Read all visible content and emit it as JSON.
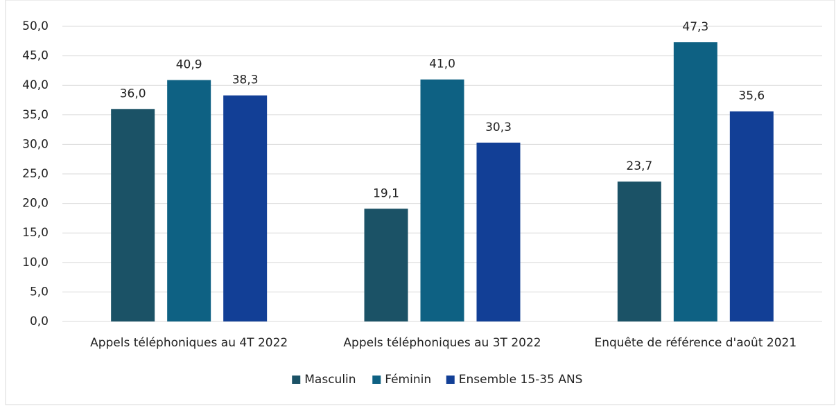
{
  "chart_data": {
    "type": "bar",
    "categories": [
      "Appels téléphoniques au 4T 2022",
      "Appels téléphoniques au 3T 2022",
      "Enquête de référence d'août 2021"
    ],
    "series": [
      {
        "name": "Masculin",
        "color": "#1b5266",
        "values": [
          36.0,
          19.1,
          23.7
        ],
        "value_labels": [
          "36,0",
          "19,1",
          "23,7"
        ]
      },
      {
        "name": "Féminin",
        "color": "#0e6183",
        "values": [
          40.9,
          41.0,
          47.3
        ],
        "value_labels": [
          "40,9",
          "41,0",
          "47,3"
        ]
      },
      {
        "name": "Ensemble 15-35 ANS",
        "color": "#123f96",
        "values": [
          38.3,
          30.3,
          35.6
        ],
        "value_labels": [
          "38,3",
          "30,3",
          "35,6"
        ]
      }
    ],
    "ylim": [
      0,
      50
    ],
    "yticks": [
      {
        "value": 0,
        "label": "0,0"
      },
      {
        "value": 5,
        "label": "5,0"
      },
      {
        "value": 10,
        "label": "10,0"
      },
      {
        "value": 15,
        "label": "15,0"
      },
      {
        "value": 20,
        "label": "20,0"
      },
      {
        "value": 25,
        "label": "25,0"
      },
      {
        "value": 30,
        "label": "30,0"
      },
      {
        "value": 35,
        "label": "35,0"
      },
      {
        "value": 40,
        "label": "40,0"
      },
      {
        "value": 45,
        "label": "45,0"
      },
      {
        "value": 50,
        "label": "50,0"
      }
    ],
    "grid": true,
    "legend": "bottom"
  }
}
